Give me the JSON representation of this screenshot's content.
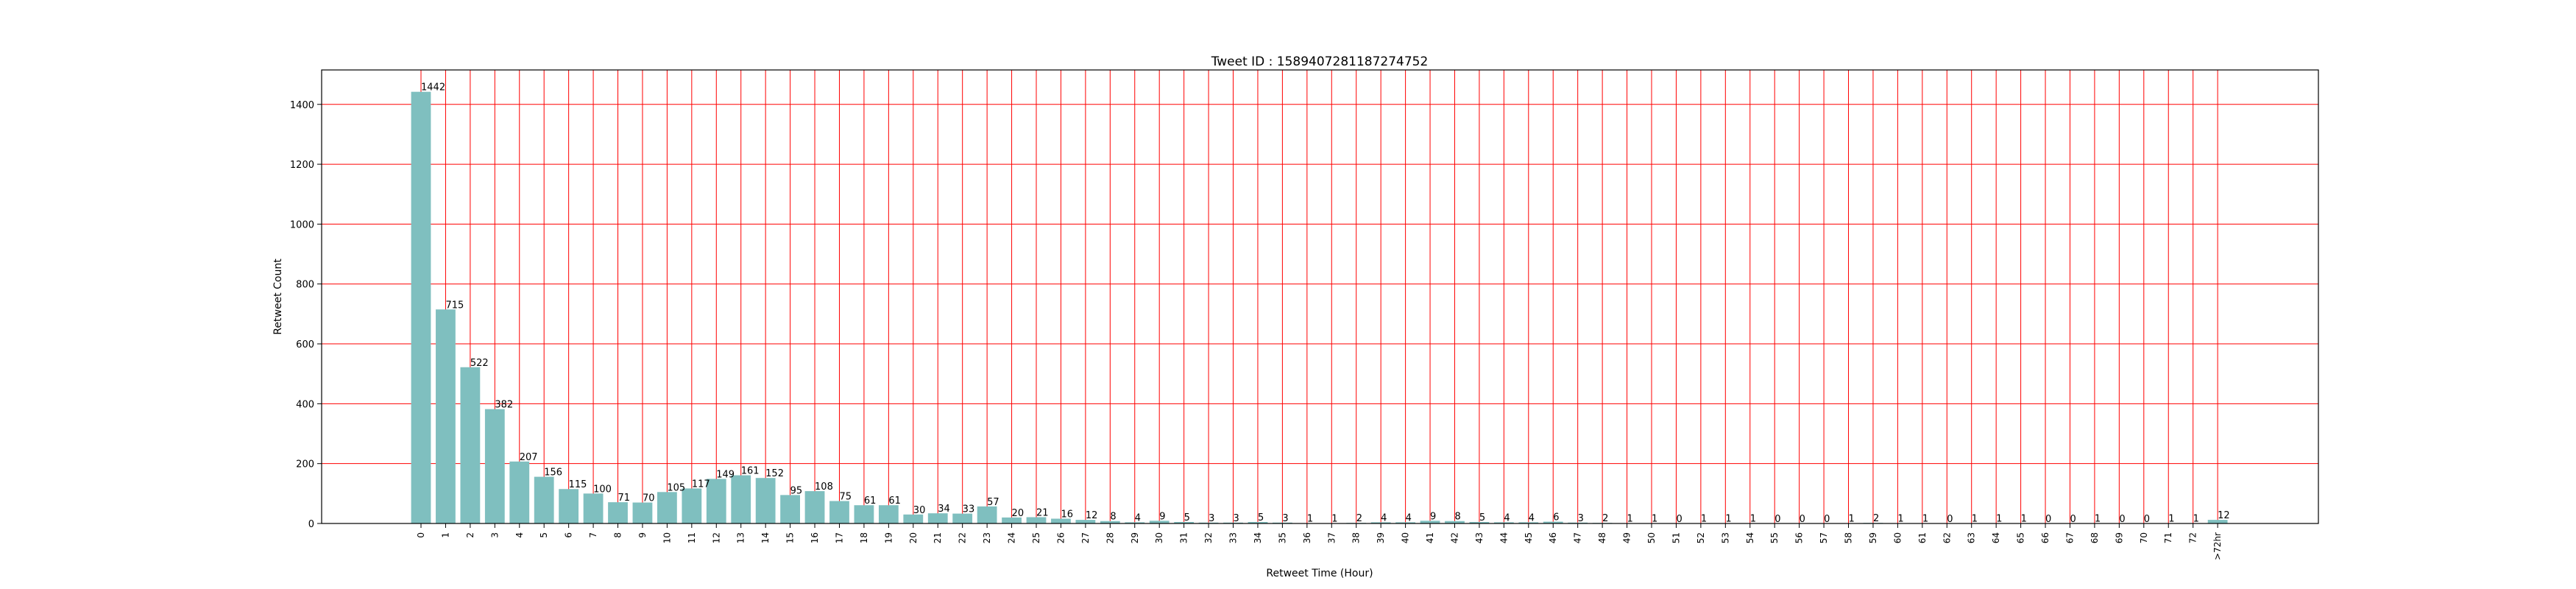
{
  "chart_data": {
    "type": "bar",
    "title": "Tweet ID : 1589407281187274752",
    "xlabel": "Retweet Time (Hour)",
    "ylabel": "Retweet Count",
    "ylim": [
      0,
      1515
    ],
    "yticks": [
      0,
      200,
      400,
      600,
      800,
      1000,
      1200,
      1400
    ],
    "grid": true,
    "grid_color": "#ff0000",
    "bar_color": "#7fbfbf",
    "categories": [
      "0",
      "1",
      "2",
      "3",
      "4",
      "5",
      "6",
      "7",
      "8",
      "9",
      "10",
      "11",
      "12",
      "13",
      "14",
      "15",
      "16",
      "17",
      "18",
      "19",
      "20",
      "21",
      "22",
      "23",
      "24",
      "25",
      "26",
      "27",
      "28",
      "29",
      "30",
      "31",
      "32",
      "33",
      "34",
      "35",
      "36",
      "37",
      "38",
      "39",
      "40",
      "41",
      "42",
      "43",
      "44",
      "45",
      "46",
      "47",
      "48",
      "49",
      "50",
      "51",
      "52",
      "53",
      "54",
      "55",
      "56",
      "57",
      "58",
      "59",
      "60",
      "61",
      "62",
      "63",
      "64",
      "65",
      "66",
      "67",
      "68",
      "69",
      "70",
      "71",
      "72",
      ">72hr"
    ],
    "values": [
      1442,
      715,
      522,
      382,
      207,
      156,
      115,
      100,
      71,
      70,
      105,
      117,
      149,
      161,
      152,
      95,
      108,
      75,
      61,
      61,
      30,
      34,
      33,
      57,
      20,
      21,
      16,
      12,
      8,
      4,
      9,
      5,
      3,
      3,
      5,
      3,
      1,
      1,
      2,
      4,
      4,
      9,
      8,
      5,
      4,
      4,
      6,
      3,
      2,
      1,
      1,
      0,
      1,
      1,
      1,
      0,
      0,
      0,
      1,
      2,
      1,
      1,
      0,
      1,
      1,
      1,
      0,
      0,
      1,
      0,
      0,
      1,
      1,
      12
    ]
  }
}
